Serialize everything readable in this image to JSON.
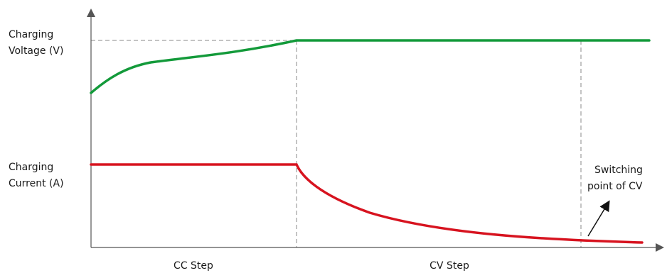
{
  "chart_data": {
    "type": "line",
    "title": "",
    "ylabels": {
      "voltage": [
        "Charging",
        "Voltage (V)"
      ],
      "current": [
        "Charging",
        "Current (A)"
      ]
    },
    "phases": [
      "CC Step",
      "CV Step"
    ],
    "annotation": [
      "Switching",
      "point of CV"
    ],
    "colors": {
      "voltage": "#139a3a",
      "current": "#d7131f",
      "axis": "#555555",
      "guide": "#8a8a8a"
    },
    "series": [
      {
        "key": "voltage",
        "kind": "voltage"
      },
      {
        "key": "current",
        "kind": "current"
      }
    ]
  }
}
